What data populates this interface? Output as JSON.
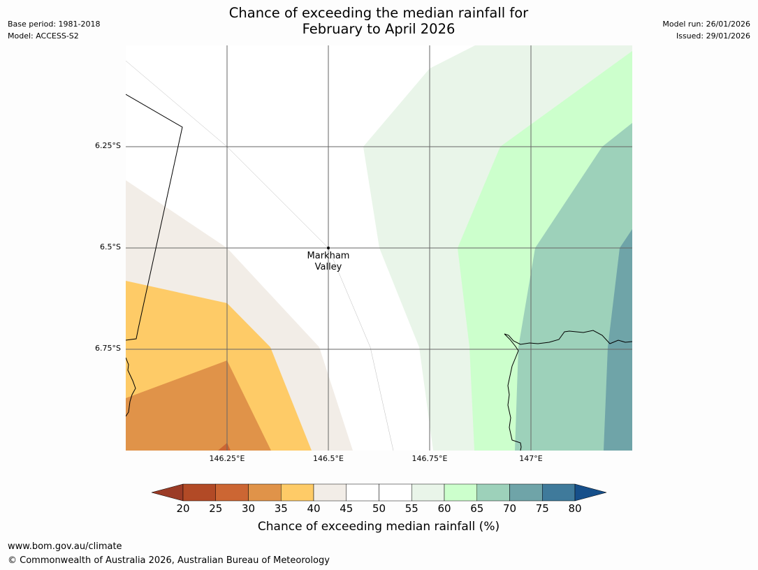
{
  "header": {
    "title_line1": "Chance of exceeding the median rainfall for",
    "title_line2": "February to April 2026",
    "base_period": "Base period: 1981-2018",
    "model": "Model: ACCESS-S2",
    "model_run": "Model run: 26/01/2026",
    "issued": "Issued: 29/01/2026"
  },
  "map": {
    "lat_labels": [
      "6.25°S",
      "6.5°S",
      "6.75°S"
    ],
    "lon_labels": [
      "146.25°E",
      "146.5°E",
      "146.75°E",
      "147°E"
    ],
    "place_label": [
      "Markham",
      "Valley"
    ]
  },
  "colorbar": {
    "label": "Chance of exceeding median rainfall (%)",
    "ticks": [
      "20",
      "25",
      "30",
      "35",
      "40",
      "45",
      "50",
      "55",
      "60",
      "65",
      "70",
      "75",
      "80"
    ],
    "colors": {
      "under": "#9b3b26",
      "c20_25": "#b24a26",
      "c25_30": "#cc6633",
      "c30_35": "#e09349",
      "c35_40": "#fecb67",
      "c40_45": "#f2ede7",
      "c45_50": "#ffffff",
      "c50_55": "#ffffff",
      "c55_60": "#e9f5e9",
      "c60_65": "#ccffcc",
      "c65_70": "#9dd1ba",
      "c70_75": "#6fa4a8",
      "c75_80": "#3f7a9b",
      "over": "#164f8a"
    }
  },
  "footer": {
    "url": "www.bom.gov.au/climate",
    "copyright": "© Commonwealth of Australia 2026, Australian Bureau of Meteorology"
  }
}
